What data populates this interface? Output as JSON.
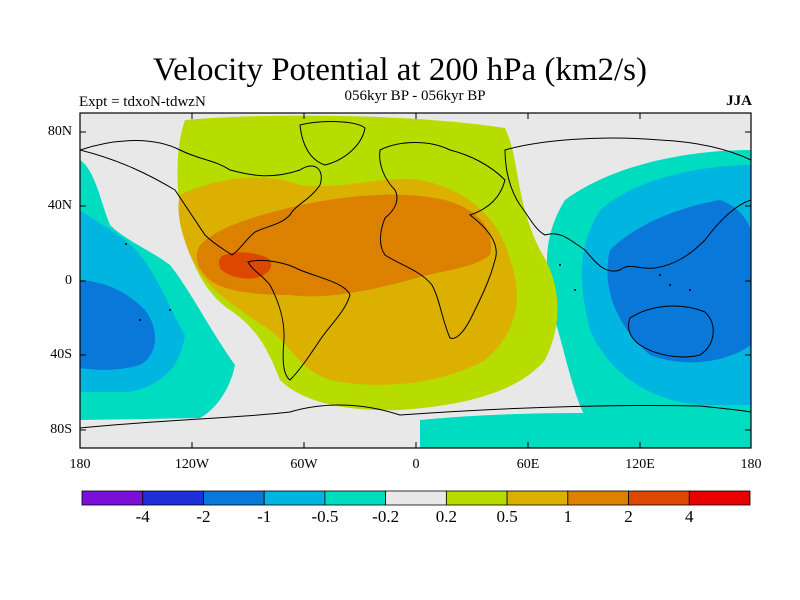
{
  "title": "Velocity Potential at 200 hPa (km2/s)",
  "subtitle": "056kyr BP - 056kyr BP",
  "left_label": "Expt = tdxoN-tdwzN",
  "right_label": "JJA",
  "y_ticks": [
    "80N",
    "40N",
    "0",
    "40S",
    "80S"
  ],
  "x_ticks": [
    "180",
    "120W",
    "60W",
    "0",
    "60E",
    "120E",
    "180"
  ],
  "colorbar": {
    "labels": [
      "-4",
      "-2",
      "-1",
      "-0.5",
      "-0.2",
      "0.2",
      "0.5",
      "1",
      "2",
      "4"
    ],
    "colors": [
      "#7a10d8",
      "#1f30d8",
      "#0a78d8",
      "#00b6e0",
      "#00dcc0",
      "#e8e8e8",
      "#b6dc00",
      "#dcb000",
      "#dc8000",
      "#dc4800",
      "#e80000"
    ]
  },
  "fill_colors": {
    "land_outline": "#000000",
    "neutral": "#e8e8e8"
  }
}
